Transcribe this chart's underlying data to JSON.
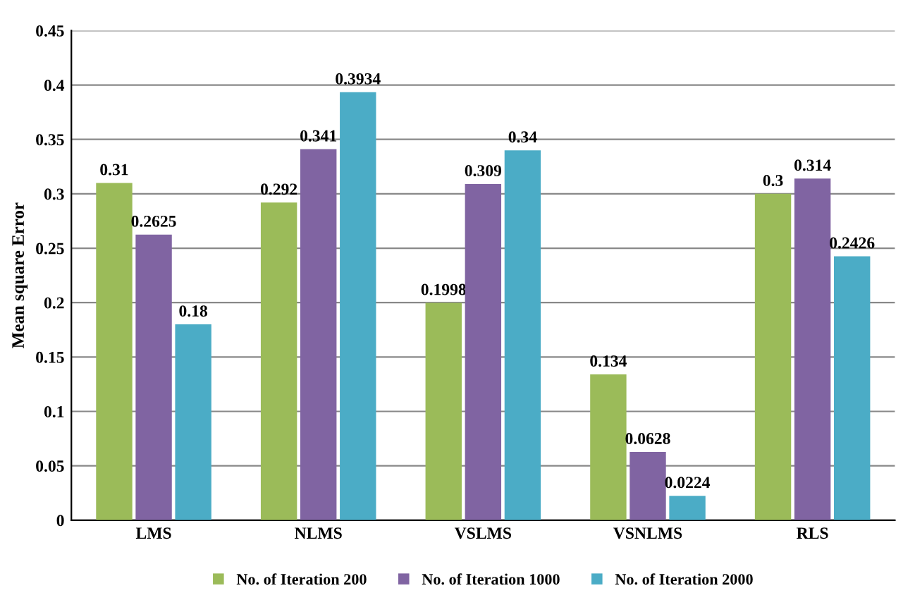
{
  "chart_data": {
    "type": "bar",
    "ylabel": "Mean square Error",
    "categories": [
      "LMS",
      "NLMS",
      "VSLMS",
      "VSNLMS",
      "RLS"
    ],
    "series": [
      {
        "name": "No. of Iteration 200",
        "color": "#9bbb59",
        "values": [
          0.31,
          0.292,
          0.1998,
          0.134,
          0.3
        ]
      },
      {
        "name": "No. of Iteration 1000",
        "color": "#8064a2",
        "values": [
          0.2625,
          0.341,
          0.309,
          0.0628,
          0.314
        ]
      },
      {
        "name": "No. of Iteration 2000",
        "color": "#4bacc6",
        "values": [
          0.18,
          0.3934,
          0.34,
          0.0224,
          0.2426
        ]
      }
    ],
    "ylim": [
      0,
      0.45
    ],
    "yticks": [
      0,
      0.05,
      0.1,
      0.15,
      0.2,
      0.25,
      0.3,
      0.35,
      0.4,
      0.45
    ],
    "grid": "y",
    "legend": "bottom",
    "data_labels": true
  }
}
